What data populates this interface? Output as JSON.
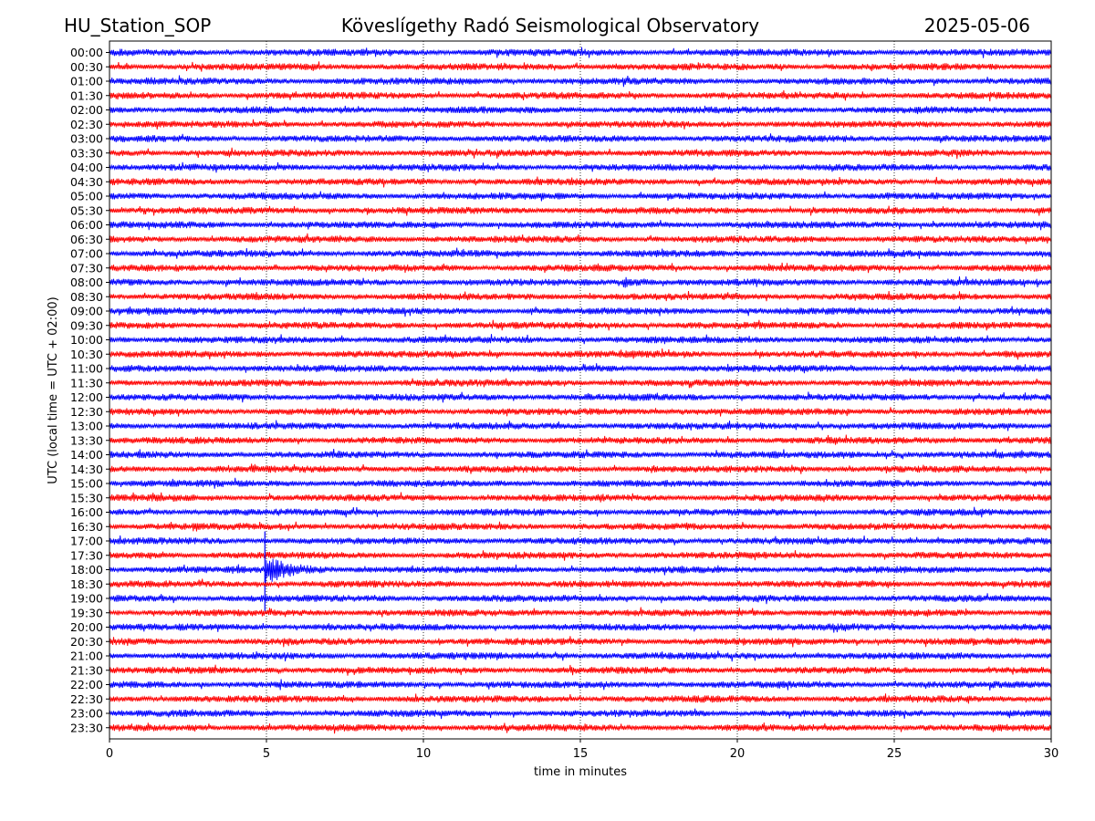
{
  "header": {
    "station": "HU_Station_SOP",
    "observatory": "Köveslígethy Radó Seismological Observatory",
    "date": "2025-05-06"
  },
  "chart_data": {
    "type": "line",
    "title": "Köveslígethy Radó Seismological Observatory",
    "xlabel": "time in minutes",
    "ylabel": "UTC (local time = UTC + 02:00)",
    "xlim": [
      0,
      30
    ],
    "xticks": [
      0,
      5,
      10,
      15,
      20,
      25,
      30
    ],
    "grid": "vertical dotted lines at 5-minute ticks",
    "row_labels": [
      "00:00",
      "00:30",
      "01:00",
      "01:30",
      "02:00",
      "02:30",
      "03:00",
      "03:30",
      "04:00",
      "04:30",
      "05:00",
      "05:30",
      "06:00",
      "06:30",
      "07:00",
      "07:30",
      "08:00",
      "08:30",
      "09:00",
      "09:30",
      "10:00",
      "10:30",
      "11:00",
      "11:30",
      "12:00",
      "12:30",
      "13:00",
      "13:30",
      "14:00",
      "14:30",
      "15:00",
      "15:30",
      "16:00",
      "16:30",
      "17:00",
      "17:30",
      "18:00",
      "18:30",
      "19:00",
      "19:30",
      "20:00",
      "20:30",
      "21:00",
      "21:30",
      "22:00",
      "22:30",
      "23:00",
      "23:30"
    ],
    "series_colors": [
      "#0000ff",
      "#ff0000"
    ],
    "events": [
      {
        "row": "18:00",
        "onset_minute": 4.95,
        "duration_minutes": 2.0,
        "peak_relative_amplitude": 3.5
      },
      {
        "row": "08:00",
        "onset_minute": 16.3,
        "duration_minutes": 1.2,
        "peak_relative_amplitude": 1.3
      },
      {
        "row": "05:00",
        "onset_minute": 24.7,
        "duration_minutes": 0.4,
        "peak_relative_amplitude": 0.9
      }
    ]
  }
}
